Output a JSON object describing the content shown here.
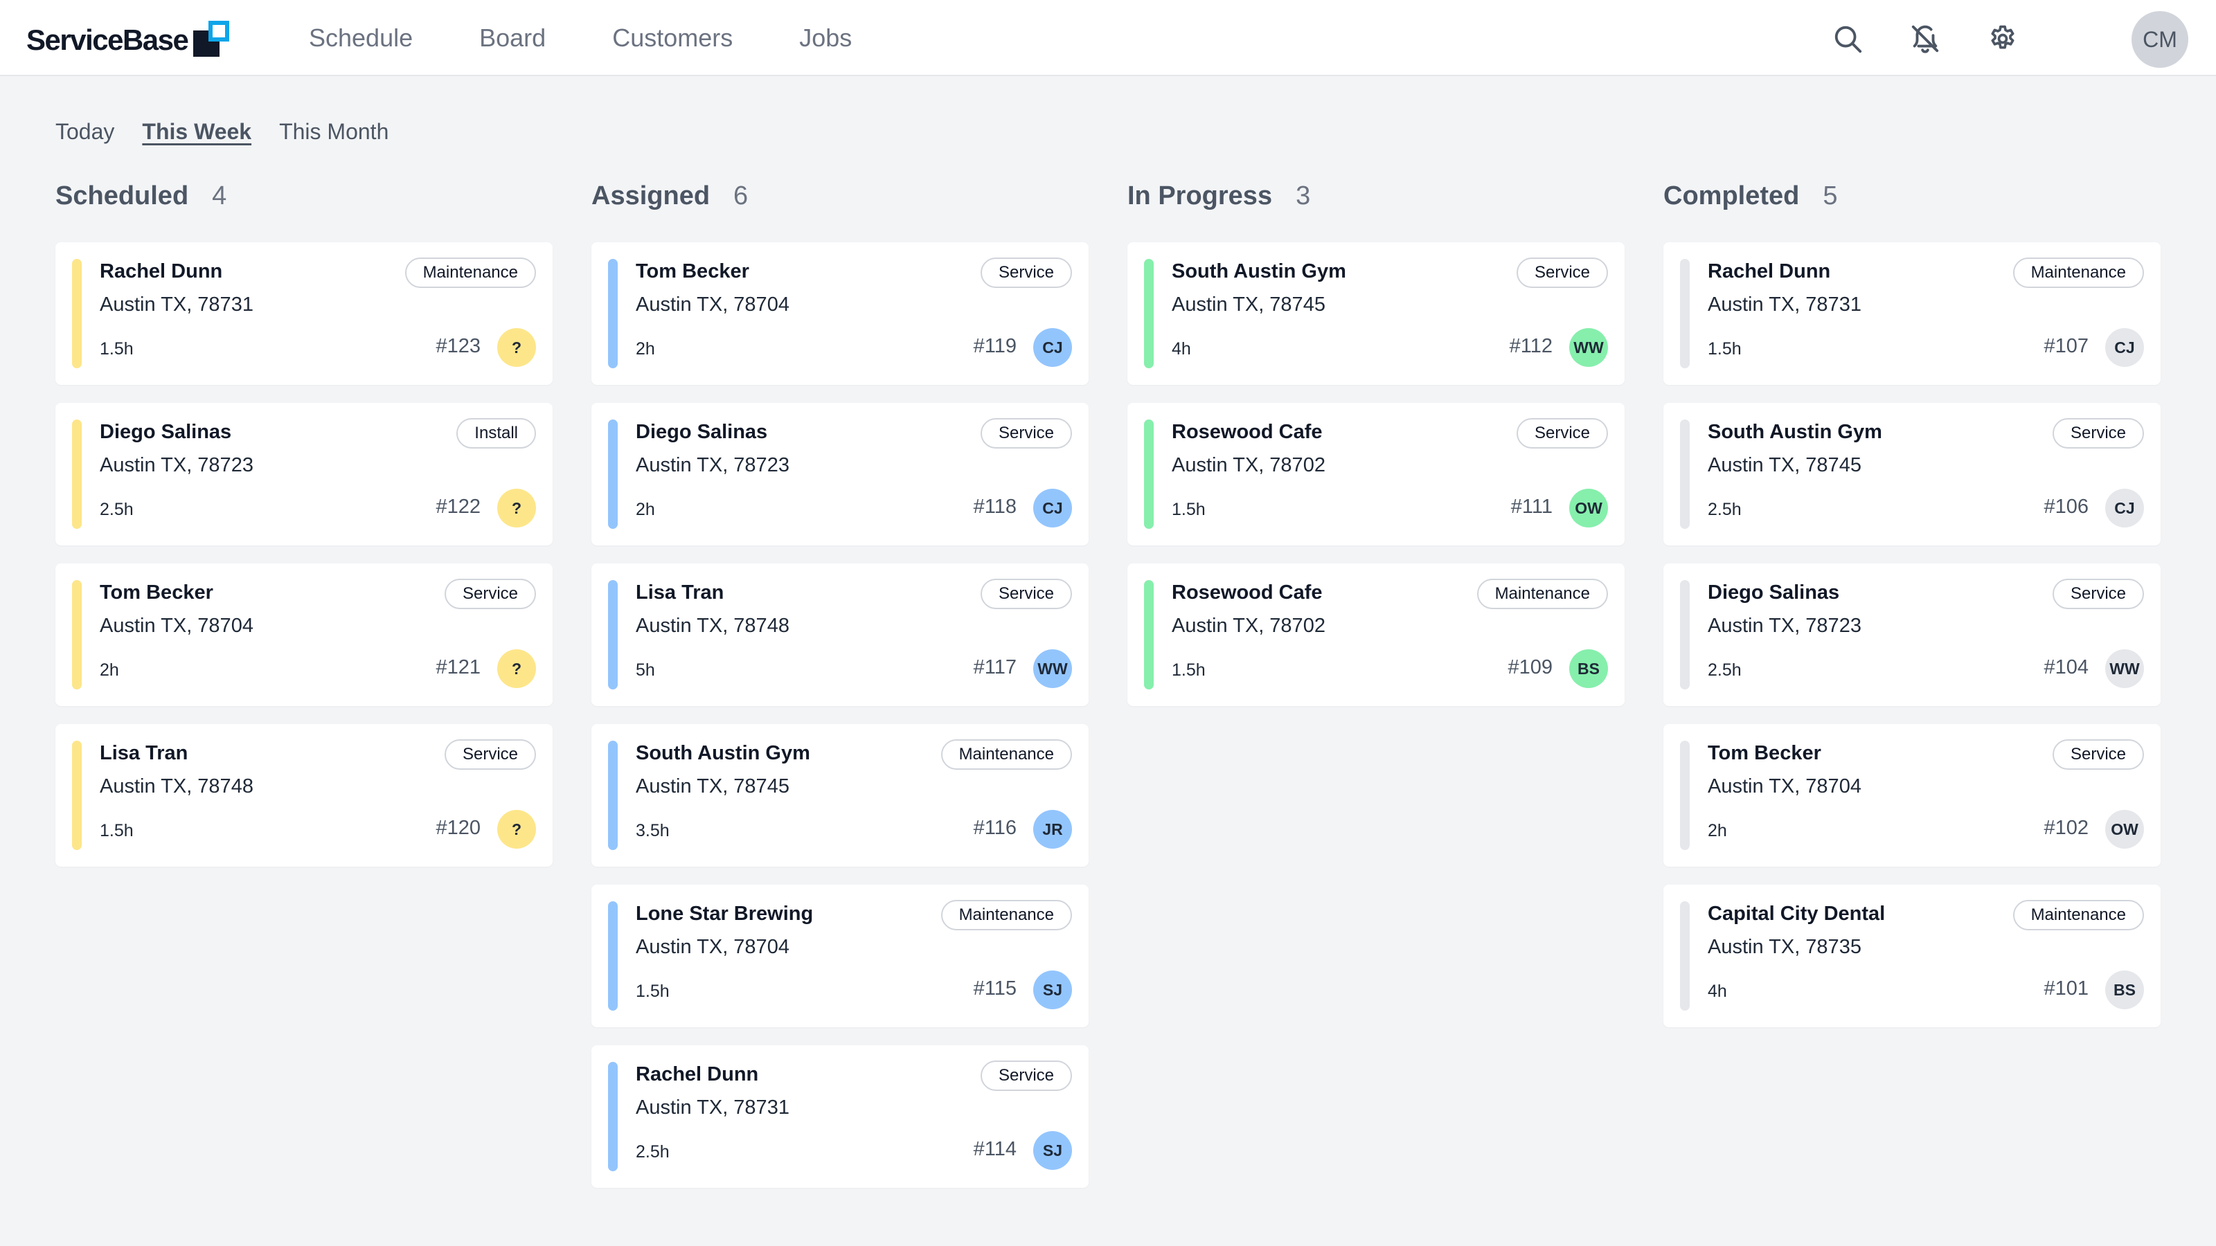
{
  "app": {
    "logo_text": "ServiceBase"
  },
  "nav": [
    "Schedule",
    "Board",
    "Customers",
    "Jobs"
  ],
  "header_icons": [
    "search-icon",
    "bell-off-icon",
    "gear-icon"
  ],
  "user": {
    "initials": "CM"
  },
  "filters": {
    "items": [
      "Today",
      "This Week",
      "This Month"
    ],
    "active": "This Week"
  },
  "colors": {
    "scheduled": "#fde68a",
    "assigned": "#93c5fd",
    "in_progress": "#86efac",
    "completed": "#e5e7eb"
  },
  "columns": [
    {
      "title": "Scheduled",
      "count": "4",
      "bar_color": "#fde68a",
      "cards": [
        {
          "name": "Rachel Dunn",
          "address": "Austin TX, 78731",
          "duration": "1.5h",
          "tag": "Maintenance",
          "number": "#123",
          "assignee": "?"
        },
        {
          "name": "Diego Salinas",
          "address": "Austin TX, 78723",
          "duration": "2.5h",
          "tag": "Install",
          "number": "#122",
          "assignee": "?"
        },
        {
          "name": "Tom Becker",
          "address": "Austin TX, 78704",
          "duration": "2h",
          "tag": "Service",
          "number": "#121",
          "assignee": "?"
        },
        {
          "name": "Lisa Tran",
          "address": "Austin TX, 78748",
          "duration": "1.5h",
          "tag": "Service",
          "number": "#120",
          "assignee": "?"
        }
      ]
    },
    {
      "title": "Assigned",
      "count": "6",
      "bar_color": "#93c5fd",
      "cards": [
        {
          "name": "Tom Becker",
          "address": "Austin TX, 78704",
          "duration": "2h",
          "tag": "Service",
          "number": "#119",
          "assignee": "CJ"
        },
        {
          "name": "Diego Salinas",
          "address": "Austin TX, 78723",
          "duration": "2h",
          "tag": "Service",
          "number": "#118",
          "assignee": "CJ"
        },
        {
          "name": "Lisa Tran",
          "address": "Austin TX, 78748",
          "duration": "5h",
          "tag": "Service",
          "number": "#117",
          "assignee": "WW"
        },
        {
          "name": "South Austin Gym",
          "address": "Austin TX, 78745",
          "duration": "3.5h",
          "tag": "Maintenance",
          "number": "#116",
          "assignee": "JR"
        },
        {
          "name": "Lone Star Brewing",
          "address": "Austin TX, 78704",
          "duration": "1.5h",
          "tag": "Maintenance",
          "number": "#115",
          "assignee": "SJ"
        },
        {
          "name": "Rachel Dunn",
          "address": "Austin TX, 78731",
          "duration": "2.5h",
          "tag": "Service",
          "number": "#114",
          "assignee": "SJ"
        }
      ]
    },
    {
      "title": "In Progress",
      "count": "3",
      "bar_color": "#86efac",
      "cards": [
        {
          "name": "South Austin Gym",
          "address": "Austin TX, 78745",
          "duration": "4h",
          "tag": "Service",
          "number": "#112",
          "assignee": "WW"
        },
        {
          "name": "Rosewood Cafe",
          "address": "Austin TX, 78702",
          "duration": "1.5h",
          "tag": "Service",
          "number": "#111",
          "assignee": "OW"
        },
        {
          "name": "Rosewood Cafe",
          "address": "Austin TX, 78702",
          "duration": "1.5h",
          "tag": "Maintenance",
          "number": "#109",
          "assignee": "BS"
        }
      ]
    },
    {
      "title": "Completed",
      "count": "5",
      "bar_color": "#e5e7eb",
      "cards": [
        {
          "name": "Rachel Dunn",
          "address": "Austin TX, 78731",
          "duration": "1.5h",
          "tag": "Maintenance",
          "number": "#107",
          "assignee": "CJ"
        },
        {
          "name": "South Austin Gym",
          "address": "Austin TX, 78745",
          "duration": "2.5h",
          "tag": "Service",
          "number": "#106",
          "assignee": "CJ"
        },
        {
          "name": "Diego Salinas",
          "address": "Austin TX, 78723",
          "duration": "2.5h",
          "tag": "Service",
          "number": "#104",
          "assignee": "WW"
        },
        {
          "name": "Tom Becker",
          "address": "Austin TX, 78704",
          "duration": "2h",
          "tag": "Service",
          "number": "#102",
          "assignee": "OW"
        },
        {
          "name": "Capital City Dental",
          "address": "Austin TX, 78735",
          "duration": "4h",
          "tag": "Maintenance",
          "number": "#101",
          "assignee": "BS"
        }
      ]
    }
  ]
}
